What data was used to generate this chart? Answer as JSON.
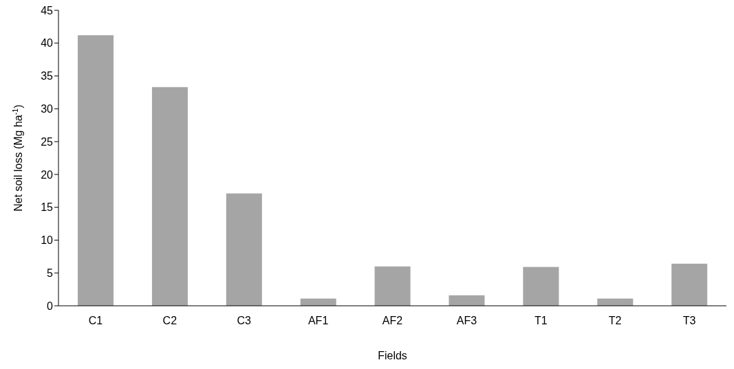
{
  "chart_data": {
    "type": "bar",
    "xlabel": "Fields",
    "ylabel": "Net soil loss (Mg ha$^{-1}$)",
    "categories": [
      "C1",
      "C2",
      "C3",
      "AF1",
      "AF2",
      "AF3",
      "T1",
      "T2",
      "T3"
    ],
    "values": [
      41.2,
      33.3,
      17.1,
      1.1,
      6.0,
      1.6,
      5.9,
      1.1,
      6.4
    ],
    "color": "#a5a5a5",
    "ylim": [
      0,
      45
    ],
    "yticks": [
      0,
      5,
      10,
      15,
      20,
      25,
      30,
      35,
      40,
      45
    ],
    "grid": false,
    "legend": false
  }
}
